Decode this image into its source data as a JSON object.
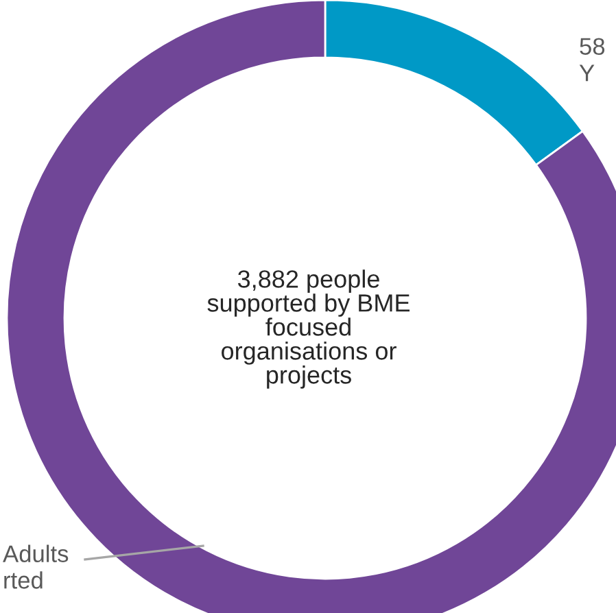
{
  "chart_data": {
    "type": "donut",
    "categories": [
      "58\nY",
      "Adults\nrted"
    ],
    "values": [
      15,
      85
    ],
    "colors": [
      "#0099c6",
      "#704697"
    ],
    "annotations": [
      "3,882 people\nsupported by BME\nfocused\norganisations or\nprojects"
    ]
  }
}
